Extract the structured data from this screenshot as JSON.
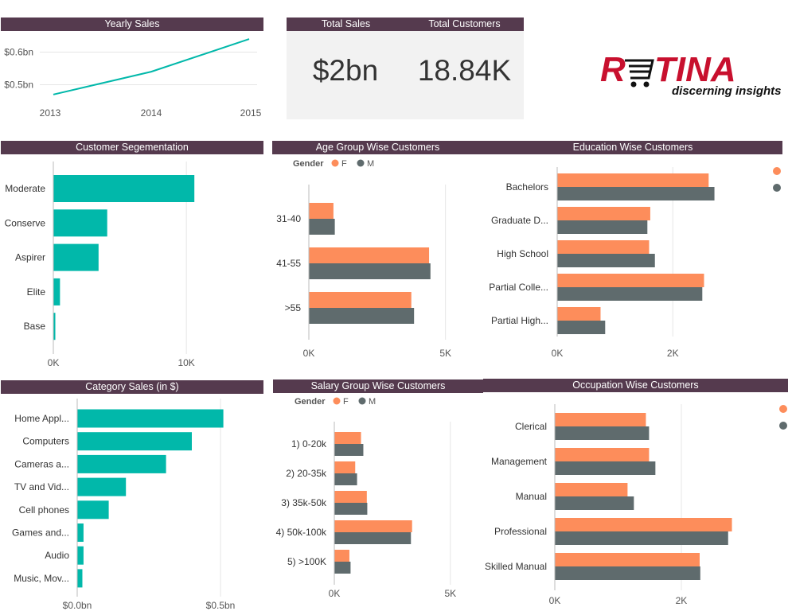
{
  "kpis": {
    "total_sales_label": "Total Sales",
    "total_sales_value": "$2bn",
    "total_customers_label": "Total Customers",
    "total_customers_value": "18.84K"
  },
  "logo": {
    "text": "R",
    "text2": "TINA",
    "tagline": "discerning insights",
    "color": "#c8102e"
  },
  "colors": {
    "header_bg": "#553a4e",
    "teal": "#01b8aa",
    "female": "#fd8d5b",
    "male": "#5f6b6d"
  },
  "chart_data": [
    {
      "id": "yearly",
      "type": "line",
      "title": "Yearly Sales",
      "x": [
        "2013",
        "2014",
        "2015"
      ],
      "values": [
        0.47,
        0.54,
        0.64
      ],
      "ylim": [
        0.45,
        0.65
      ],
      "yticks": [
        {
          "v": 0.5,
          "label": "$0.5bn"
        },
        {
          "v": 0.6,
          "label": "$0.6bn"
        }
      ]
    },
    {
      "id": "seg",
      "type": "bar",
      "title": "Customer Segementation",
      "categories": [
        "Moderate",
        "Conserve",
        "Aspirer",
        "Elite",
        "Base"
      ],
      "values": [
        10600,
        4050,
        3400,
        500,
        150
      ],
      "xlim": [
        0,
        14000
      ],
      "xticks": [
        {
          "v": 0,
          "label": "0K"
        },
        {
          "v": 10000,
          "label": "10K"
        }
      ]
    },
    {
      "id": "cat",
      "type": "bar",
      "title": "Category Sales (in $)",
      "categories": [
        "Home Appl...",
        "Computers",
        "Cameras a...",
        "TV and Vid...",
        "Cell phones",
        "Games and...",
        "Audio",
        "Music, Mov..."
      ],
      "values": [
        0.51,
        0.4,
        0.31,
        0.17,
        0.11,
        0.022,
        0.022,
        0.018
      ],
      "xlim": [
        0,
        0.7
      ],
      "xticks": [
        {
          "v": 0,
          "label": "$0.0bn"
        },
        {
          "v": 0.5,
          "label": "$0.5bn"
        }
      ]
    },
    {
      "id": "age",
      "type": "bar",
      "title": "Age Group Wise Customers",
      "legend_title": "Gender",
      "categories": [
        "31-40",
        "41-55",
        ">55"
      ],
      "series": [
        {
          "name": "F",
          "values": [
            900,
            4400,
            3750
          ]
        },
        {
          "name": "M",
          "values": [
            950,
            4450,
            3850
          ]
        }
      ],
      "xlim": [
        0,
        6000
      ],
      "xticks": [
        {
          "v": 0,
          "label": "0K"
        },
        {
          "v": 5000,
          "label": "5K"
        }
      ]
    },
    {
      "id": "edu",
      "type": "bar",
      "title": "Education Wise Customers",
      "categories": [
        "Bachelors",
        "Graduate D...",
        "High School",
        "Partial Colle...",
        "Partial High..."
      ],
      "series": [
        {
          "values": [
            2620,
            1610,
            1590,
            2540,
            750
          ]
        },
        {
          "values": [
            2720,
            1560,
            1690,
            2510,
            830
          ]
        }
      ],
      "xlim": [
        0,
        3800
      ],
      "xticks": [
        {
          "v": 0,
          "label": "0K"
        },
        {
          "v": 2000,
          "label": "2K"
        }
      ]
    },
    {
      "id": "sal",
      "type": "bar",
      "title": "Salary Group Wise Customers",
      "legend_title": "Gender",
      "categories": [
        "1) 0-20k",
        "2) 20-35k",
        "3) 35k-50k",
        "4) 50k-100k",
        "5) >100K"
      ],
      "series": [
        {
          "name": "F",
          "values": [
            1150,
            900,
            1400,
            3350,
            650
          ]
        },
        {
          "name": "M",
          "values": [
            1250,
            980,
            1420,
            3300,
            700
          ]
        }
      ],
      "xlim": [
        0,
        6000
      ],
      "xticks": [
        {
          "v": 0,
          "label": "0K"
        },
        {
          "v": 5000,
          "label": "5K"
        }
      ]
    },
    {
      "id": "occ",
      "type": "bar",
      "title": "Occupation Wise Customers",
      "categories": [
        "Clerical",
        "Management",
        "Manual",
        "Professional",
        "Skilled Manual"
      ],
      "series": [
        {
          "values": [
            1440,
            1490,
            1150,
            2800,
            2290
          ]
        },
        {
          "values": [
            1490,
            1590,
            1250,
            2740,
            2300
          ]
        }
      ],
      "xlim": [
        0,
        3800
      ],
      "xticks": [
        {
          "v": 0,
          "label": "0K"
        },
        {
          "v": 2000,
          "label": "2K"
        }
      ]
    }
  ]
}
